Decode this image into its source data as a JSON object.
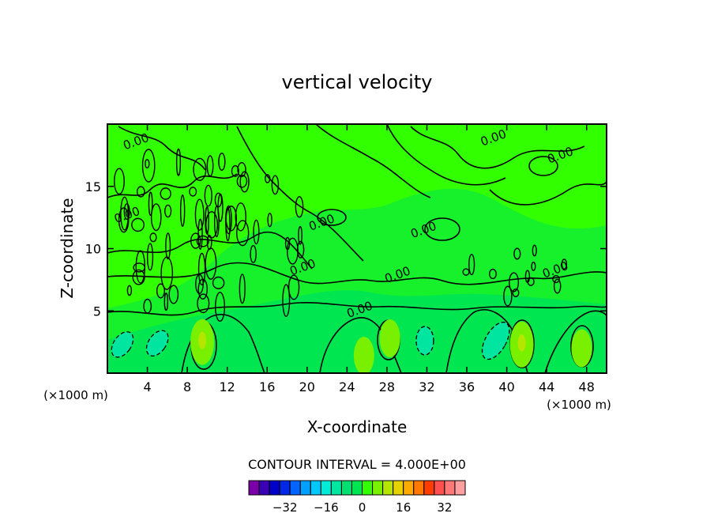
{
  "chart_data": {
    "type": "heatmap",
    "title": "vertical velocity",
    "xlabel": "X-coordinate",
    "ylabel": "Z-coordinate",
    "x_unit": "(×1000 m)",
    "x_unit_right": "(×1000 m)",
    "xlim": [
      0,
      50
    ],
    "ylim": [
      0,
      20
    ],
    "x_ticks": [
      4,
      8,
      12,
      16,
      20,
      24,
      28,
      32,
      36,
      40,
      44,
      48
    ],
    "y_ticks": [
      5,
      10,
      15
    ],
    "contour_interval_text": "CONTOUR INTERVAL = 4.000E+00",
    "contour_labels": [
      {
        "x": 3,
        "y": 18.3,
        "text": "0.00"
      },
      {
        "x": 2.1,
        "y": 12.4,
        "text": "0.00"
      },
      {
        "x": 19.7,
        "y": 8.2,
        "text": "0.00"
      },
      {
        "x": 21.6,
        "y": 11.8,
        "text": "0.00"
      },
      {
        "x": 25.4,
        "y": 4.8,
        "text": "0.00"
      },
      {
        "x": 29.2,
        "y": 7.6,
        "text": "0.00"
      },
      {
        "x": 31.8,
        "y": 11.2,
        "text": "0.00"
      },
      {
        "x": 38.8,
        "y": 18.6,
        "text": "0.00"
      },
      {
        "x": 45.5,
        "y": 17.2,
        "text": "0.00"
      },
      {
        "x": 45.0,
        "y": 8.0,
        "text": "0.00"
      }
    ],
    "features": [
      {
        "type": "updraft",
        "x": 9.5,
        "z": 2.5,
        "max": 8
      },
      {
        "type": "updraft",
        "x": 28.3,
        "z": 2.8,
        "max": 4
      },
      {
        "type": "updraft",
        "x": 41.5,
        "z": 2.3,
        "max": 8
      },
      {
        "type": "updraft",
        "x": 47.5,
        "z": 2.0,
        "max": 4
      },
      {
        "type": "updraft",
        "x": 25.7,
        "z": 1.4,
        "max": 4
      },
      {
        "type": "downdraft",
        "x": 5.0,
        "z": 2.4,
        "min": -4
      },
      {
        "type": "downdraft",
        "x": 1.5,
        "z": 2.3,
        "min": -4
      },
      {
        "type": "downdraft",
        "x": 31.8,
        "z": 2.6,
        "min": -4
      },
      {
        "type": "downdraft",
        "x": 38.9,
        "z": 2.6,
        "min": -8
      }
    ],
    "colorbar": {
      "ticks": [
        "-32",
        "-16",
        "0",
        "16",
        "32"
      ],
      "colors": [
        "#7c00a8",
        "#3c00b4",
        "#0000c8",
        "#0028e6",
        "#0064ff",
        "#00a0ff",
        "#00c8ff",
        "#00ecd8",
        "#00e6a0",
        "#00e070",
        "#00e650",
        "#32ff00",
        "#78f000",
        "#b4e600",
        "#e6d200",
        "#ffaa00",
        "#ff7800",
        "#ff3c00",
        "#ff5050",
        "#ff7878",
        "#ffa0a0"
      ]
    }
  }
}
